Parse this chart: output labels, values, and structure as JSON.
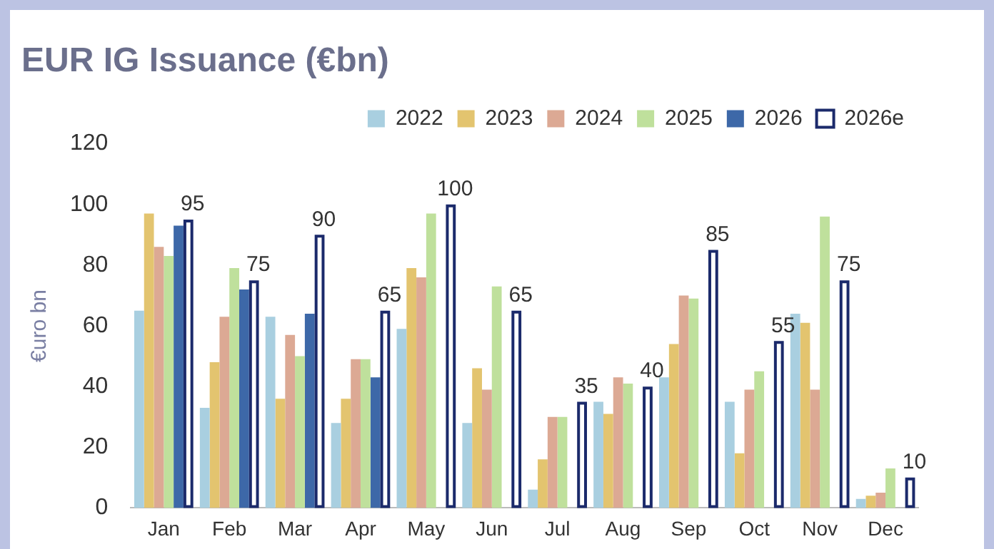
{
  "chart_data": {
    "type": "bar",
    "title": "EUR IG Issuance (€bn)",
    "ylabel": "€uro bn",
    "categories": [
      "Jan",
      "Feb",
      "Mar",
      "Apr",
      "May",
      "Jun",
      "Jul",
      "Aug",
      "Sep",
      "Oct",
      "Nov",
      "Dec"
    ],
    "series": [
      {
        "name": "2022",
        "color": "#a9cfe0",
        "values": [
          65,
          33,
          63,
          28,
          59,
          28,
          6,
          35,
          43,
          35,
          64,
          3
        ]
      },
      {
        "name": "2023",
        "color": "#e3c46f",
        "values": [
          97,
          48,
          36,
          36,
          79,
          46,
          16,
          31,
          54,
          18,
          61,
          4
        ]
      },
      {
        "name": "2024",
        "color": "#dca994",
        "values": [
          86,
          63,
          57,
          49,
          76,
          39,
          30,
          43,
          70,
          39,
          39,
          5
        ]
      },
      {
        "name": "2025",
        "color": "#bfe09c",
        "values": [
          83,
          79,
          50,
          49,
          97,
          73,
          30,
          41,
          69,
          45,
          96,
          13
        ]
      },
      {
        "name": "2026",
        "color": "#3d68a8",
        "values": [
          93,
          72,
          64,
          43,
          null,
          null,
          null,
          null,
          null,
          null,
          null,
          null
        ]
      },
      {
        "name": "2026e",
        "color": "#1b2a6b",
        "line_style": "solid",
        "values": [
          95,
          75,
          90,
          65,
          100,
          65,
          35,
          40,
          85,
          55,
          75,
          10
        ],
        "value_labels": [
          "95",
          "75",
          "90",
          "65",
          "100",
          "65",
          "35",
          "40",
          "85",
          "55",
          "75",
          "10"
        ]
      }
    ],
    "ylim": [
      0,
      120
    ],
    "yticks": [
      0,
      20,
      40,
      60,
      80,
      100,
      120
    ],
    "grid": false,
    "legend": "top right"
  }
}
